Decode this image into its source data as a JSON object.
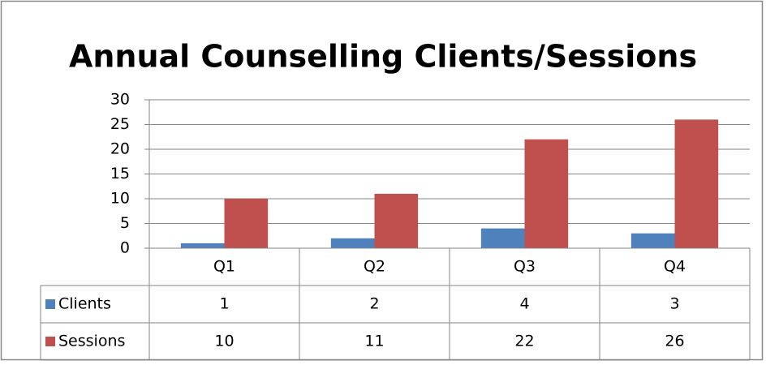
{
  "chart_data": {
    "type": "bar",
    "title": "Annual Counselling Clients/Sessions",
    "categories": [
      "Q1",
      "Q2",
      "Q3",
      "Q4"
    ],
    "series": [
      {
        "name": "Clients",
        "color": "#4f81bd",
        "values": [
          1,
          2,
          4,
          3
        ]
      },
      {
        "name": "Sessions",
        "color": "#c0504d",
        "values": [
          10,
          11,
          22,
          26
        ]
      }
    ],
    "ylim": [
      0,
      30
    ],
    "yticks": [
      0,
      5,
      10,
      15,
      20,
      25,
      30
    ],
    "grid": true,
    "data_table": true
  }
}
